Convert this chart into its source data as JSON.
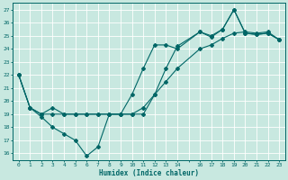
{
  "xlabel": "Humidex (Indice chaleur)",
  "background_color": "#c8e8e0",
  "grid_color": "#ffffff",
  "line_color": "#006666",
  "xlim": [
    -0.5,
    23.5
  ],
  "ylim": [
    15.5,
    27.5
  ],
  "xticks": [
    0,
    1,
    2,
    3,
    4,
    5,
    6,
    7,
    8,
    9,
    10,
    11,
    12,
    13,
    14,
    15,
    16,
    17,
    18,
    19,
    20,
    21,
    22,
    23
  ],
  "xtick_labels": [
    "0",
    "1",
    "2",
    "3",
    "4",
    "5",
    "6",
    "7",
    "8",
    "9",
    "10",
    "11",
    "12",
    "13",
    "14",
    "",
    "16",
    "17",
    "18",
    "19",
    "20",
    "21",
    "22",
    "23"
  ],
  "yticks": [
    16,
    17,
    18,
    19,
    20,
    21,
    22,
    23,
    24,
    25,
    26,
    27
  ],
  "line1_x": [
    0,
    1,
    2,
    3,
    4,
    5,
    6,
    7,
    8,
    9,
    10,
    11,
    12,
    13,
    14,
    16,
    17,
    18,
    19,
    20,
    21,
    22,
    23
  ],
  "line1_y": [
    22,
    19.5,
    18.8,
    18.0,
    17.5,
    17.0,
    15.8,
    16.5,
    19.0,
    19.0,
    19.0,
    19.0,
    20.5,
    22.5,
    24.2,
    25.3,
    24.9,
    25.5,
    27.0,
    25.2,
    25.1,
    25.2,
    24.7
  ],
  "line2_x": [
    0,
    1,
    2,
    3,
    4,
    5,
    6,
    7,
    8,
    9,
    10,
    11,
    12,
    13,
    14,
    16,
    17,
    18,
    19,
    20,
    21,
    22,
    23
  ],
  "line2_y": [
    22,
    19.5,
    19.0,
    19.5,
    19.0,
    19.0,
    19.0,
    19.0,
    19.0,
    19.0,
    20.5,
    22.5,
    24.3,
    24.3,
    24.0,
    25.3,
    25.0,
    25.5,
    27.0,
    25.2,
    25.1,
    25.2,
    24.7
  ],
  "line3_x": [
    0,
    1,
    2,
    3,
    4,
    5,
    6,
    7,
    8,
    9,
    10,
    11,
    12,
    13,
    14,
    16,
    17,
    18,
    19,
    20,
    21,
    22,
    23
  ],
  "line3_y": [
    22,
    19.5,
    19.0,
    19.0,
    19.0,
    19.0,
    19.0,
    19.0,
    19.0,
    19.0,
    19.0,
    19.5,
    20.5,
    21.5,
    22.5,
    24.0,
    24.3,
    24.8,
    25.2,
    25.3,
    25.2,
    25.3,
    24.7
  ]
}
